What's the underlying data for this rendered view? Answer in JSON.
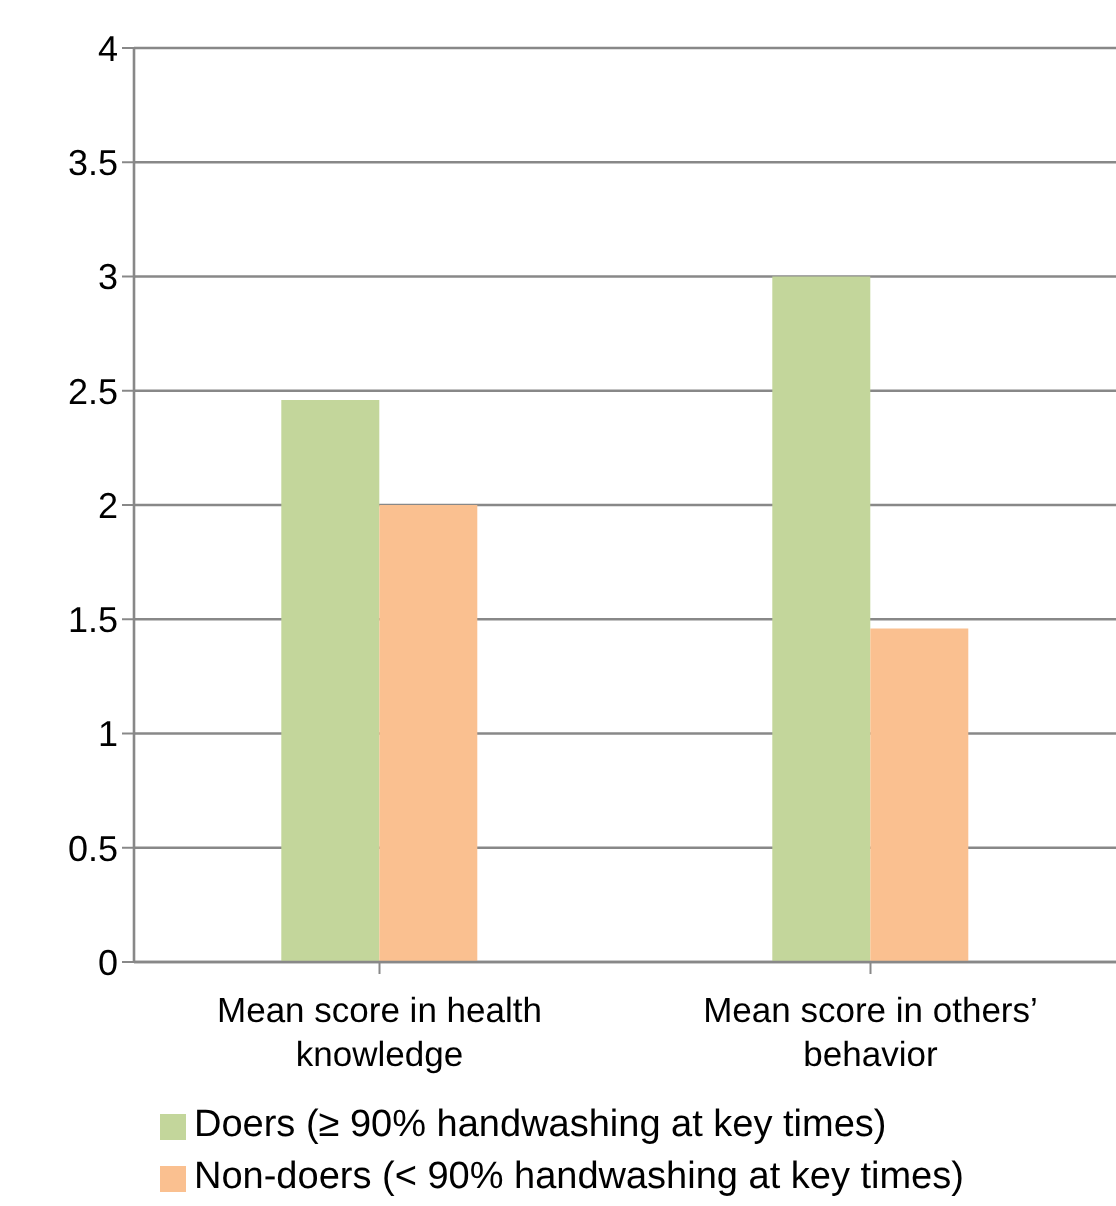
{
  "chart_data": {
    "type": "bar",
    "categories": [
      "Mean score in health knowledge",
      "Mean score in others’ behavior"
    ],
    "series": [
      {
        "name": "Doers (≥ 90% handwashing at key times)",
        "color": "#c3d69b",
        "values": [
          2.46,
          3.0
        ]
      },
      {
        "name": "Non-doers (< 90% handwashing at key times)",
        "color": "#fac090",
        "values": [
          2.0,
          1.46
        ]
      }
    ],
    "ylim": [
      0,
      4
    ],
    "yticks": [
      0,
      0.5,
      1,
      1.5,
      2,
      2.5,
      3,
      3.5,
      4
    ],
    "grid": "y",
    "legend": "bottom"
  }
}
